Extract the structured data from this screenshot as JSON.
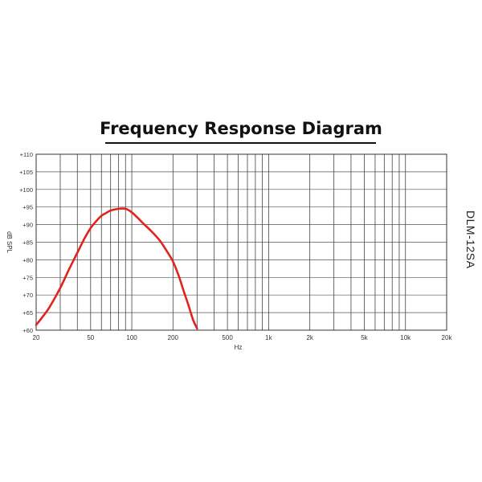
{
  "title": "Frequency Response Diagram",
  "model_label": "DLM-12SA",
  "chart_data": {
    "type": "line",
    "title": "Frequency Response Diagram",
    "xlabel": "Hz",
    "ylabel": "dB SPL",
    "xscale": "log",
    "xlim": [
      20,
      20000
    ],
    "ylim": [
      60,
      110
    ],
    "grid": true,
    "x_tick_labels": [
      {
        "value": 20,
        "label": "20"
      },
      {
        "value": 50,
        "label": "50"
      },
      {
        "value": 100,
        "label": "100"
      },
      {
        "value": 200,
        "label": "200"
      },
      {
        "value": 500,
        "label": "500"
      },
      {
        "value": 1000,
        "label": "1k"
      },
      {
        "value": 2000,
        "label": "2k"
      },
      {
        "value": 5000,
        "label": "5k"
      },
      {
        "value": 10000,
        "label": "10k"
      },
      {
        "value": 20000,
        "label": "20k"
      }
    ],
    "x_gridlines": [
      20,
      30,
      40,
      50,
      60,
      70,
      80,
      90,
      100,
      200,
      300,
      400,
      500,
      600,
      700,
      800,
      900,
      1000,
      2000,
      3000,
      4000,
      5000,
      6000,
      7000,
      8000,
      9000,
      10000,
      20000
    ],
    "y_ticks": [
      {
        "value": 60,
        "label": "+60"
      },
      {
        "value": 65,
        "label": "+65"
      },
      {
        "value": 70,
        "label": "+70"
      },
      {
        "value": 75,
        "label": "+75"
      },
      {
        "value": 80,
        "label": "+80"
      },
      {
        "value": 85,
        "label": "+85"
      },
      {
        "value": 90,
        "label": "+90"
      },
      {
        "value": 95,
        "label": "+95"
      },
      {
        "value": 100,
        "label": "+100"
      },
      {
        "value": 105,
        "label": "+105"
      },
      {
        "value": 110,
        "label": "+110"
      }
    ],
    "series": [
      {
        "color": "#e0231e",
        "points": [
          [
            20,
            61.5
          ],
          [
            22,
            63.5
          ],
          [
            25,
            66.5
          ],
          [
            30,
            72
          ],
          [
            35,
            77.5
          ],
          [
            40,
            82
          ],
          [
            45,
            86
          ],
          [
            50,
            89
          ],
          [
            55,
            91
          ],
          [
            60,
            92.5
          ],
          [
            65,
            93.3
          ],
          [
            70,
            94
          ],
          [
            80,
            94.5
          ],
          [
            90,
            94.5
          ],
          [
            100,
            93.5
          ],
          [
            110,
            92
          ],
          [
            120,
            90.5
          ],
          [
            140,
            88
          ],
          [
            160,
            85.5
          ],
          [
            180,
            82.5
          ],
          [
            200,
            79.5
          ],
          [
            220,
            75.5
          ],
          [
            240,
            71
          ],
          [
            260,
            67
          ],
          [
            280,
            63
          ],
          [
            300,
            60.5
          ]
        ]
      }
    ]
  }
}
